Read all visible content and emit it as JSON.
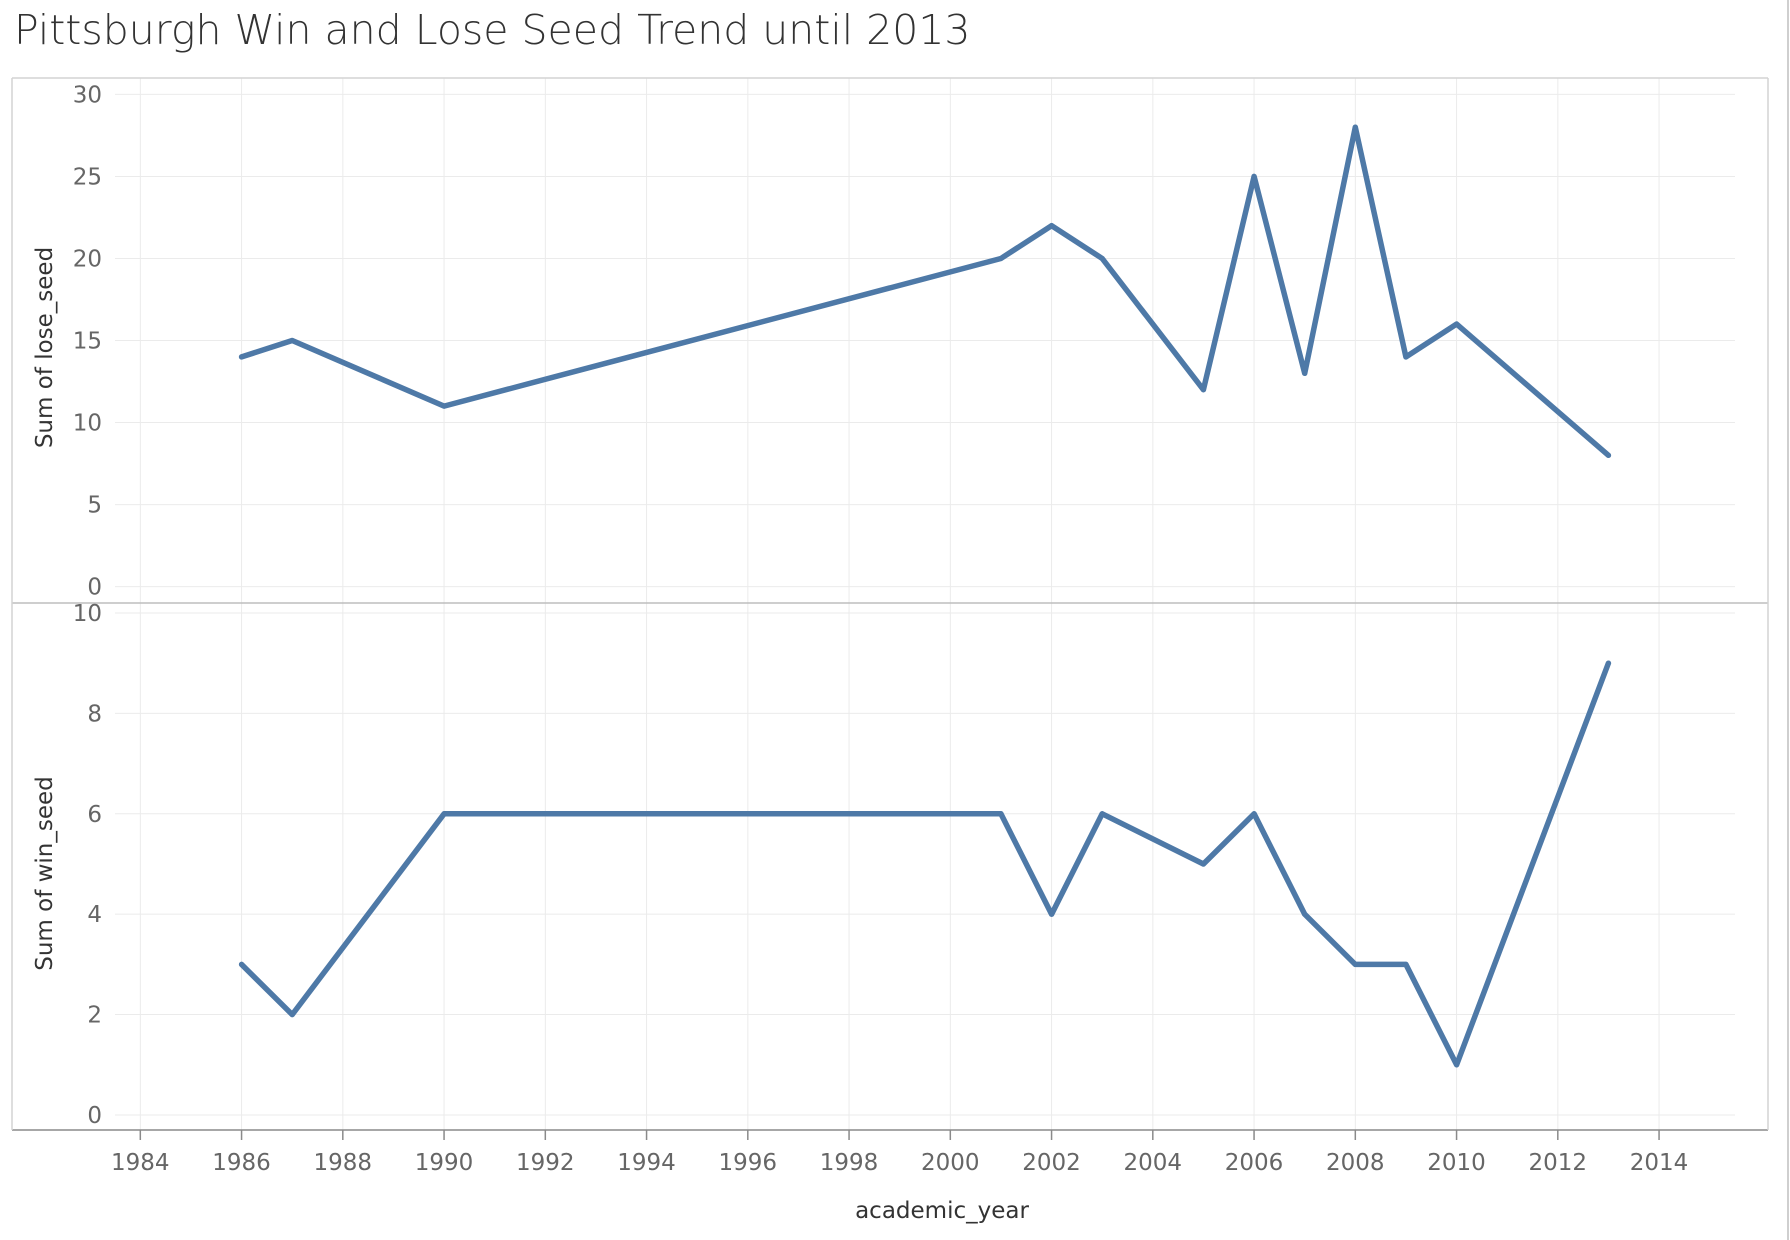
{
  "chart_data": {
    "type": "line",
    "title": "Pittsburgh Win and Lose Seed Trend until 2013",
    "xlabel": "academic_year",
    "x_ticks": [
      "1984",
      "1986",
      "1988",
      "1990",
      "1992",
      "1994",
      "1996",
      "1998",
      "2000",
      "2002",
      "2004",
      "2006",
      "2008",
      "2010",
      "2012",
      "2014"
    ],
    "xlim": [
      1983.5,
      2015.5
    ],
    "grid": true,
    "color": "#4e79a7",
    "panels": [
      {
        "ylabel": "Sum of lose_seed",
        "ylim": [
          -1,
          31
        ],
        "y_ticks": [
          "0",
          "5",
          "10",
          "15",
          "20",
          "25",
          "30"
        ],
        "x": [
          1986,
          1987,
          1990,
          2001,
          2002,
          2003,
          2005,
          2006,
          2007,
          2008,
          2009,
          2010,
          2013
        ],
        "values": [
          14,
          15,
          11,
          20,
          22,
          20,
          12,
          25,
          13,
          28,
          14,
          16,
          8
        ]
      },
      {
        "ylabel": "Sum of win_seed",
        "ylim": [
          -0.3,
          10.2
        ],
        "y_ticks": [
          "0",
          "2",
          "4",
          "6",
          "8",
          "10"
        ],
        "x": [
          1986,
          1987,
          1990,
          2001,
          2002,
          2003,
          2005,
          2006,
          2007,
          2008,
          2009,
          2010,
          2013
        ],
        "values": [
          3,
          2,
          6,
          6,
          4,
          6,
          5,
          6,
          4,
          3,
          3,
          1,
          9
        ]
      }
    ]
  }
}
